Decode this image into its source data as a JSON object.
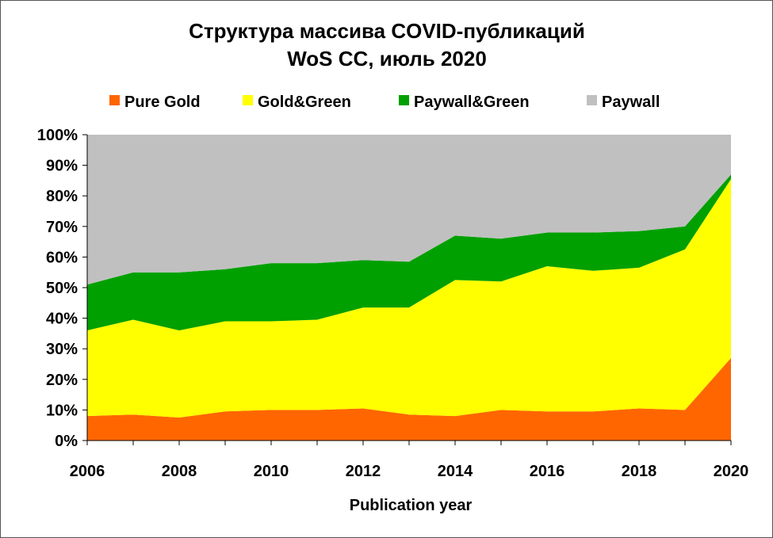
{
  "chart_data": {
    "type": "area",
    "stacked": true,
    "percent": true,
    "title": "Структура массива COVID-публикаций",
    "subtitle": "WoS CC,  июль 2020",
    "xlabel": "Publication year",
    "ylabel": "",
    "x": [
      2006,
      2007,
      2008,
      2009,
      2010,
      2011,
      2012,
      2013,
      2014,
      2015,
      2016,
      2017,
      2018,
      2019,
      2020
    ],
    "x_ticks": [
      "2006",
      "2008",
      "2010",
      "2012",
      "2014",
      "2016",
      "2018",
      "2020"
    ],
    "y_ticks": [
      "0%",
      "10%",
      "20%",
      "30%",
      "40%",
      "50%",
      "60%",
      "70%",
      "80%",
      "90%",
      "100%"
    ],
    "ylim": [
      0,
      100
    ],
    "grid": false,
    "legend_position": "top",
    "series": [
      {
        "name": "Pure Gold",
        "color": "#ff6600",
        "values": [
          8,
          8.5,
          7.5,
          9.5,
          10,
          10,
          10.5,
          8.5,
          8,
          10,
          9.5,
          9.5,
          10.5,
          10,
          27
        ]
      },
      {
        "name": "Gold&Green",
        "color": "#ffff00",
        "values": [
          28,
          31,
          28.5,
          29.5,
          29,
          29.5,
          33,
          35,
          44.5,
          42,
          47.5,
          46,
          46,
          52.5,
          58.5
        ]
      },
      {
        "name": "Paywall&Green",
        "color": "#00a000",
        "values": [
          15,
          15.5,
          19,
          17,
          19,
          18.5,
          15.5,
          15,
          14.5,
          14,
          11,
          12.5,
          12,
          7.5,
          1.5
        ]
      },
      {
        "name": "Paywall",
        "color": "#c0c0c0",
        "values": [
          49,
          45,
          45,
          44,
          42,
          42,
          41,
          41.5,
          33,
          34,
          32,
          32,
          31.5,
          30,
          13
        ]
      }
    ]
  }
}
